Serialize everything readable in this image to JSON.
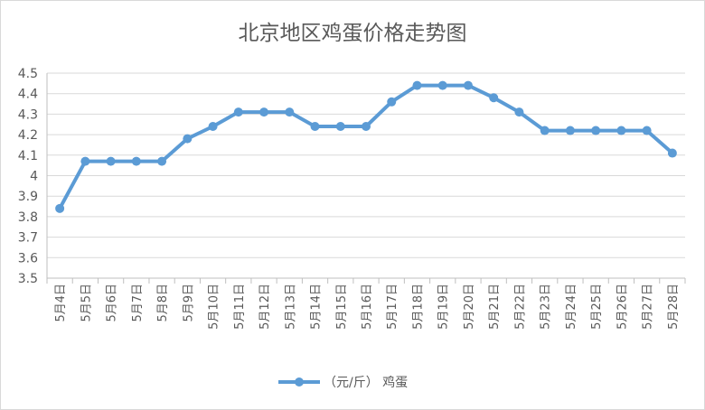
{
  "chart_data": {
    "type": "line",
    "title": "北京地区鸡蛋价格走势图",
    "categories": [
      "5月4日",
      "5月5日",
      "5月6日",
      "5月7日",
      "5月8日",
      "5月9日",
      "5月10日",
      "5月11日",
      "5月12日",
      "5月13日",
      "5月14日",
      "5月15日",
      "5月16日",
      "5月17日",
      "5月18日",
      "5月19日",
      "5月20日",
      "5月21日",
      "5月22日",
      "5月23日",
      "5月24日",
      "5月25日",
      "5月26日",
      "5月27日",
      "5月28日"
    ],
    "series": [
      {
        "name": "（元/斤） 鸡蛋",
        "color": "#5b9bd5",
        "values": [
          3.84,
          4.07,
          4.07,
          4.07,
          4.07,
          4.18,
          4.24,
          4.31,
          4.31,
          4.31,
          4.24,
          4.24,
          4.24,
          4.36,
          4.44,
          4.44,
          4.44,
          4.38,
          4.31,
          4.22,
          4.22,
          4.22,
          4.22,
          4.22,
          4.11
        ]
      }
    ],
    "ylim": [
      3.5,
      4.5
    ],
    "yticks": [
      "3.5",
      "3.6",
      "3.7",
      "3.8",
      "3.9",
      "4",
      "4.1",
      "4.2",
      "4.3",
      "4.4",
      "4.5"
    ],
    "xlabel": "",
    "ylabel": "",
    "grid": true,
    "legend": "bottom",
    "colors": {
      "gridline": "#d9d9d9",
      "axis": "#bfbfbf",
      "text": "#595959"
    }
  }
}
